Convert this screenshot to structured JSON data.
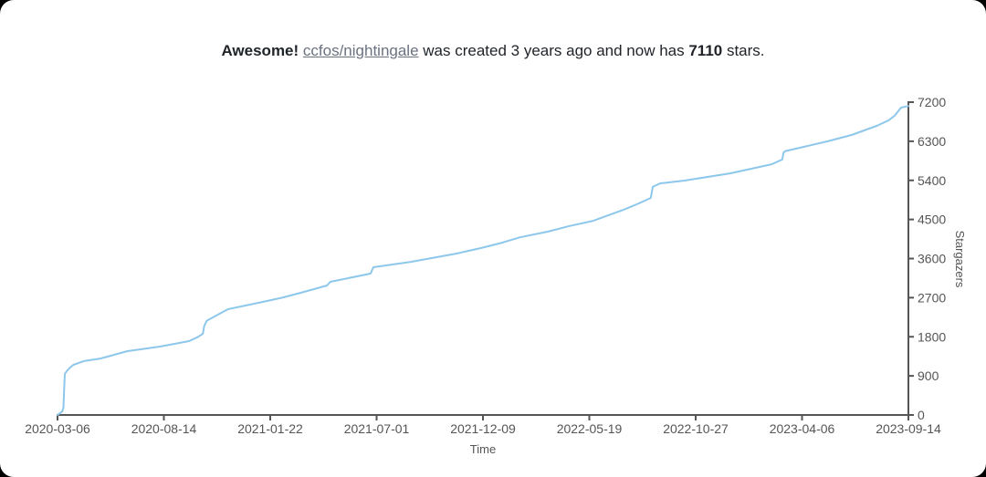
{
  "title": {
    "prefix_bold": "Awesome!",
    "space": " ",
    "repo_link": "ccfos/nightingale",
    "middle_text": " was created 3 years ago and now has ",
    "star_count": "7110",
    "suffix_text": " stars."
  },
  "chart_data": {
    "type": "line",
    "title": "Awesome! ccfos/nightingale was created 3 years ago and now has 7110 stars.",
    "xlabel": "Time",
    "ylabel": "Stargazers",
    "x_tick_labels": [
      "2020-03-06",
      "2020-08-14",
      "2021-01-22",
      "2021-07-01",
      "2021-12-09",
      "2022-05-19",
      "2022-10-27",
      "2023-04-06",
      "2023-09-14"
    ],
    "x_tick_days": [
      0,
      161,
      322,
      483,
      644,
      805,
      966,
      1127,
      1288
    ],
    "x_domain_days": [
      0,
      1288
    ],
    "y_tick_labels": [
      "0",
      "900",
      "1800",
      "2700",
      "3600",
      "4500",
      "5400",
      "6300",
      "7200"
    ],
    "y_ticks": [
      0,
      900,
      1800,
      2700,
      3600,
      4500,
      5400,
      6300,
      7200
    ],
    "y_domain": [
      0,
      7200
    ],
    "grid": false,
    "legend": "none",
    "axis_color": "#555555",
    "tick_label_color": "#555555",
    "axis_name_color": "#555555",
    "series": [
      {
        "name": "Stargazers",
        "color": "#8dc7eb",
        "final_value": 7110,
        "points_days_stars": [
          [
            0,
            0
          ],
          [
            7,
            80
          ],
          [
            9,
            170
          ],
          [
            10,
            560
          ],
          [
            11,
            945
          ],
          [
            14,
            1010
          ],
          [
            18,
            1080
          ],
          [
            24,
            1155
          ],
          [
            40,
            1240
          ],
          [
            65,
            1300
          ],
          [
            106,
            1470
          ],
          [
            155,
            1575
          ],
          [
            199,
            1700
          ],
          [
            212,
            1790
          ],
          [
            220,
            1870
          ],
          [
            222,
            2040
          ],
          [
            226,
            2170
          ],
          [
            258,
            2435
          ],
          [
            310,
            2600
          ],
          [
            340,
            2700
          ],
          [
            369,
            2815
          ],
          [
            408,
            2980
          ],
          [
            413,
            3065
          ],
          [
            466,
            3230
          ],
          [
            474,
            3255
          ],
          [
            478,
            3400
          ],
          [
            535,
            3525
          ],
          [
            604,
            3715
          ],
          [
            640,
            3840
          ],
          [
            673,
            3965
          ],
          [
            700,
            4090
          ],
          [
            742,
            4220
          ],
          [
            775,
            4350
          ],
          [
            811,
            4470
          ],
          [
            857,
            4725
          ],
          [
            880,
            4870
          ],
          [
            898,
            4995
          ],
          [
            901,
            5250
          ],
          [
            912,
            5330
          ],
          [
            949,
            5395
          ],
          [
            1018,
            5560
          ],
          [
            1081,
            5770
          ],
          [
            1097,
            5880
          ],
          [
            1099,
            6040
          ],
          [
            1102,
            6075
          ],
          [
            1129,
            6170
          ],
          [
            1166,
            6300
          ],
          [
            1202,
            6445
          ],
          [
            1240,
            6655
          ],
          [
            1258,
            6780
          ],
          [
            1267,
            6885
          ],
          [
            1277,
            7075
          ],
          [
            1284,
            7100
          ],
          [
            1288,
            7110
          ]
        ]
      }
    ]
  }
}
